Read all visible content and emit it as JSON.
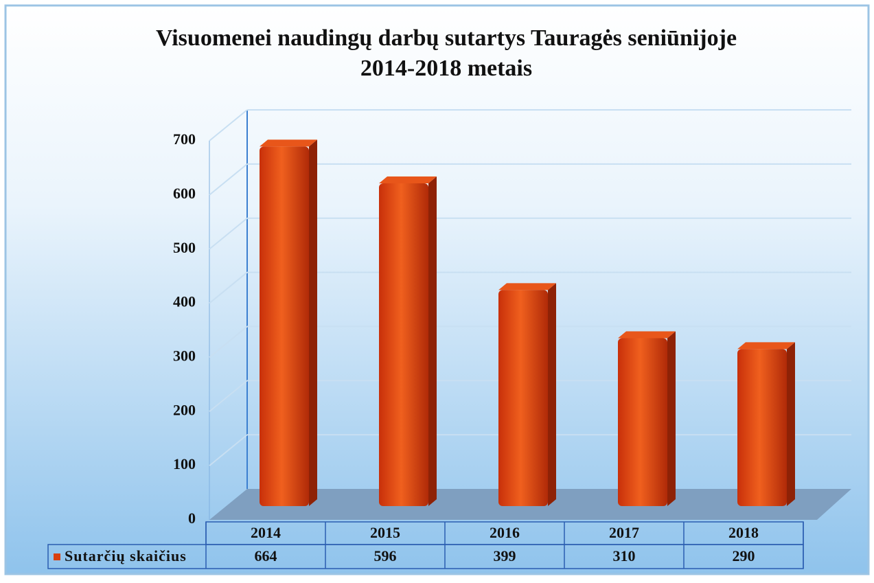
{
  "chart_data": {
    "type": "bar3d",
    "title": [
      "Visuomenei naudingų darbų sutartys Tauragės seniūnijoje",
      "2014-2018 metais"
    ],
    "categories": [
      "2014",
      "2015",
      "2016",
      "2017",
      "2018"
    ],
    "series": [
      {
        "name": "Sutarčių skaičius",
        "color": "#d9400f",
        "values": [
          664,
          596,
          399,
          310,
          290
        ]
      }
    ],
    "ylim": [
      0,
      700
    ],
    "yticks": [
      0,
      100,
      200,
      300,
      400,
      500,
      600,
      700
    ],
    "grid": true,
    "legend": "bottom-left"
  }
}
